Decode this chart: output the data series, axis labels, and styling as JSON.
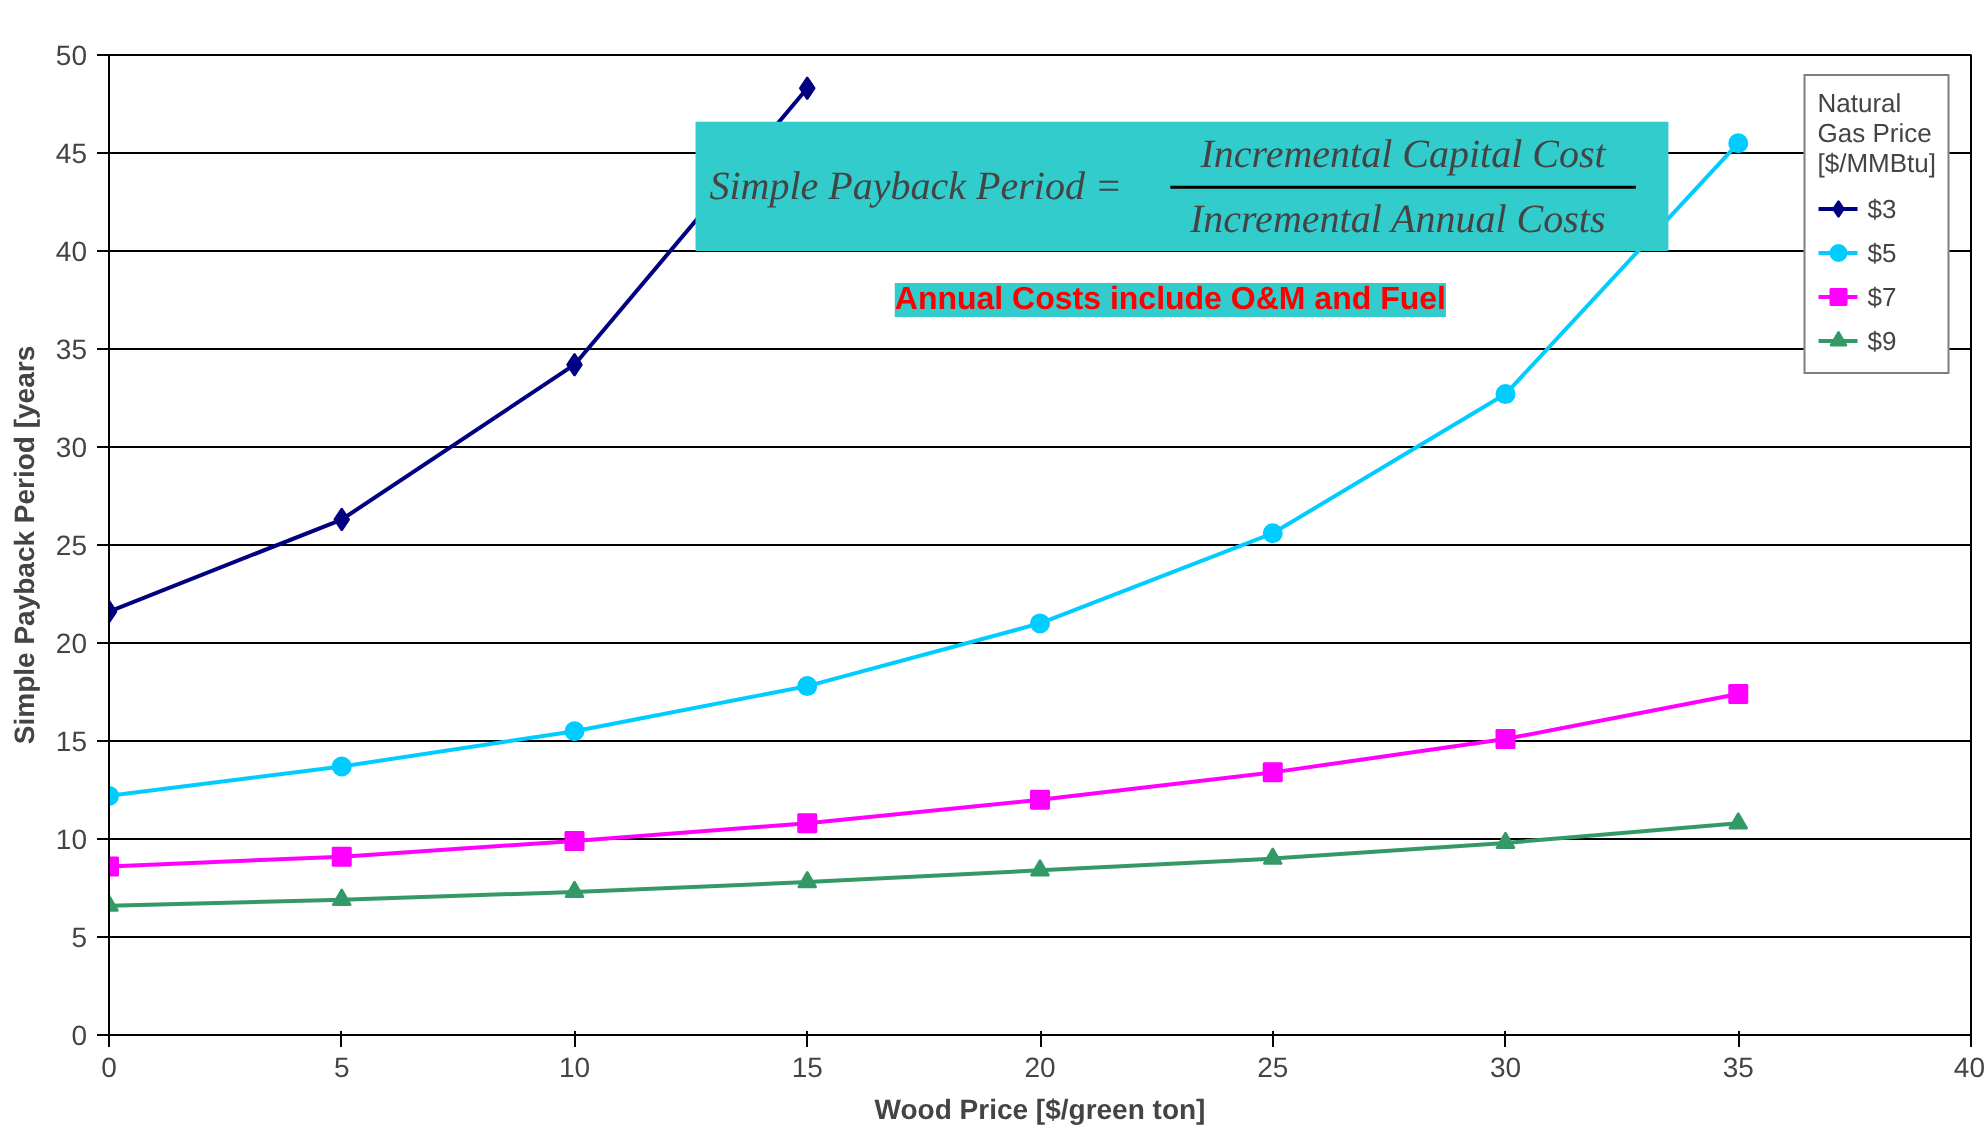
{
  "chart_data": {
    "type": "line",
    "xlabel": "Wood Price [$/green ton]",
    "ylabel": "Simple Payback Period [years",
    "legend_title": "Natural\nGas Price\n[$/MMBtu]",
    "annotations": [
      "Simple Payback Period =",
      "Incremental Capital Cost",
      "Incremental  Annual Costs",
      "Annual Costs include O&M and Fuel"
    ],
    "x": [
      0,
      5,
      10,
      15,
      20,
      25,
      30,
      35
    ],
    "series": [
      {
        "name": "$3",
        "color": "#000080",
        "marker": "diamond",
        "x": [
          0,
          5,
          10,
          15
        ],
        "values": [
          21.6,
          26.3,
          34.2,
          48.3
        ]
      },
      {
        "name": "$5",
        "color": "#00ccff",
        "marker": "circle",
        "values": [
          12.2,
          13.7,
          15.5,
          17.8,
          21.0,
          25.6,
          32.7,
          45.5
        ]
      },
      {
        "name": "$7",
        "color": "#ff00ff",
        "marker": "square",
        "values": [
          8.6,
          9.1,
          9.9,
          10.8,
          12.0,
          13.4,
          15.1,
          17.4
        ]
      },
      {
        "name": "$9",
        "color": "#339966",
        "marker": "triangle",
        "values": [
          6.6,
          6.9,
          7.3,
          7.8,
          8.4,
          9.0,
          9.8,
          10.8
        ]
      }
    ],
    "xlim": [
      0,
      40
    ],
    "xticks": [
      0,
      5,
      10,
      15,
      20,
      25,
      30,
      35,
      40
    ],
    "ylim": [
      0,
      50
    ],
    "yticks": [
      0,
      5,
      10,
      15,
      20,
      25,
      30,
      35,
      40,
      45,
      50
    ],
    "grid": "y",
    "legend": "top right"
  }
}
